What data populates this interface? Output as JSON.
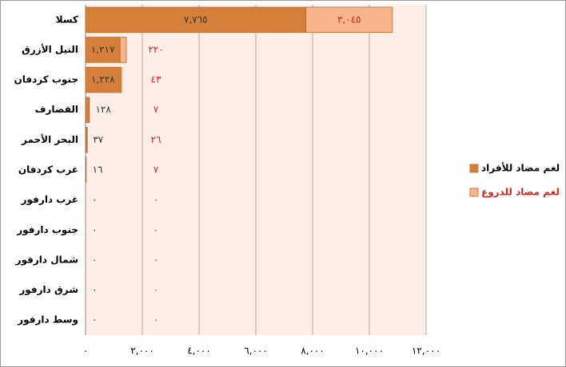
{
  "chart_data": {
    "type": "stacked_barh",
    "categories": [
      "كسلا",
      "النيل الأزرق",
      "جنوب كردفان",
      "القضارف",
      "البحر الأحمر",
      "غرب كردفان",
      "غرب دارفور",
      "جنوب دارفور",
      "شمال دارفور",
      "شرق دارفور",
      "وسط دارفور"
    ],
    "series": [
      {
        "name": "لغم مضاد للأفراد",
        "color": "#d4803a",
        "values": [
          7765,
          1217,
          1228,
          128,
          37,
          16,
          0,
          0,
          0,
          0,
          0
        ],
        "value_labels": [
          "٧,٧٦٥",
          "١,٢١٧",
          "١,٢٢٨",
          "١٢٨",
          "٣٧",
          "١٦",
          "٠",
          "٠",
          "٠",
          "٠",
          "٠"
        ]
      },
      {
        "name": "لغم مضاد للدروع",
        "color": "#f8b58c",
        "values": [
          3045,
          220,
          43,
          7,
          26,
          7,
          0,
          0,
          0,
          0,
          0
        ],
        "value_labels": [
          "٣,٠٤٥",
          "٢٢٠",
          "٤٣",
          "٧",
          "٢٦",
          "٧",
          "٠",
          "٠",
          "٠",
          "٠",
          "٠"
        ]
      }
    ],
    "xlim": [
      0,
      12000
    ],
    "xticks": [
      {
        "value": 0,
        "label": "٠"
      },
      {
        "value": 2000,
        "label": "٢,٠٠٠"
      },
      {
        "value": 4000,
        "label": "٤,٠٠٠"
      },
      {
        "value": 6000,
        "label": "٦,٠٠٠"
      },
      {
        "value": 8000,
        "label": "٨,٠٠٠"
      },
      {
        "value": 10000,
        "label": "١٠,٠٠٠"
      },
      {
        "value": 12000,
        "label": "١٢,٠٠٠"
      }
    ],
    "grid": true,
    "legend": "right"
  }
}
